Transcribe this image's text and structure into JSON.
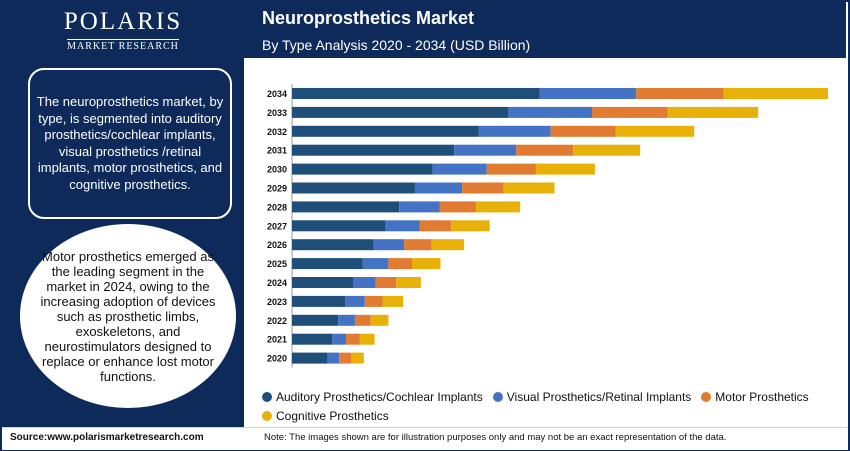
{
  "logo": {
    "name": "POLARIS",
    "sub": "MARKET RESEARCH"
  },
  "header": {
    "title": "Neuroprosthetics Market",
    "subtitle": "By Type Analysis 2020 - 2034 (USD Billion)"
  },
  "sidebar": {
    "description": "The neuroprosthetics market, by type, is segmented into auditory prosthetics/cochlear implants, visual prosthetics /retinal implants, motor prosthetics, and cognitive prosthetics.",
    "highlight": "Motor prosthetics emerged as the leading segment in the market in 2024, owing to the increasing adoption of devices such as prosthetic limbs, exoskeletons, and neurostimulators designed to replace or enhance lost motor functions."
  },
  "footer": {
    "source": "Source:www.polarismarketresearch.com",
    "note": "Note: The images shown are for illustration purposes only and may not be an exact representation of the data."
  },
  "colors": {
    "navy": "#0e2a5a",
    "auditory": "#1f4e79",
    "visual": "#4472c4",
    "motor": "#e07b31",
    "cognitive": "#e8b10a"
  },
  "chart_data": {
    "type": "bar",
    "orientation": "horizontal",
    "stacked": true,
    "categories": [
      "2034",
      "2033",
      "2032",
      "2031",
      "2030",
      "2029",
      "2028",
      "2027",
      "2026",
      "2025",
      "2024",
      "2023",
      "2022",
      "2021",
      "2020"
    ],
    "series": [
      {
        "name": "Auditory Prosthetics/Cochlear Implants",
        "color": "#1f4e79",
        "values": [
          252,
          220,
          190,
          165,
          143,
          125,
          109,
          95,
          83,
          72,
          62,
          54,
          47,
          41,
          36
        ]
      },
      {
        "name": "Visual Prosthetics/Retinal Implants",
        "color": "#4472c4",
        "values": [
          98,
          85,
          73,
          63,
          55,
          48,
          41,
          35,
          31,
          26,
          23,
          20,
          17,
          14,
          12
        ]
      },
      {
        "name": "Motor Prosthetics",
        "color": "#e07b31",
        "values": [
          89,
          77,
          66,
          58,
          50,
          42,
          37,
          32,
          28,
          24,
          21,
          18,
          16,
          14,
          12
        ]
      },
      {
        "name": "Cognitive Prosthetics",
        "color": "#e8b10a",
        "values": [
          106,
          92,
          80,
          68,
          60,
          52,
          45,
          39,
          33,
          29,
          25,
          21,
          18,
          15,
          13
        ]
      }
    ],
    "title": "Neuroprosthetics Market",
    "subtitle": "By Type Analysis 2020 - 2034 (USD Billion)",
    "legend": "bottom",
    "grid": false
  }
}
